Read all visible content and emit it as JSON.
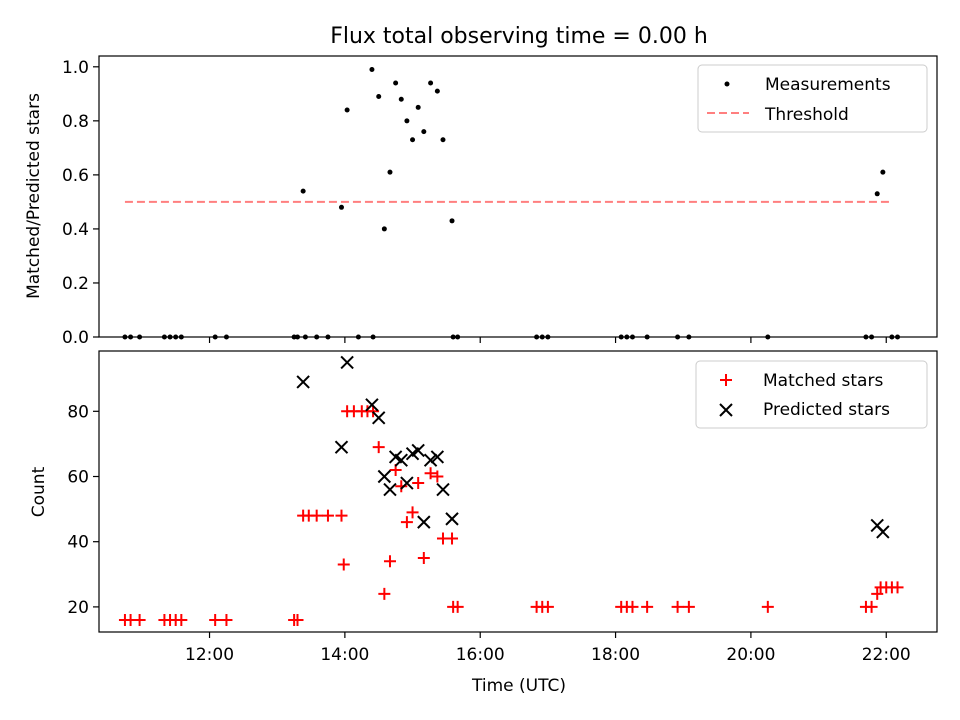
{
  "title": "Flux total observing time = 0.00 h",
  "chart_data": [
    {
      "type": "scatter",
      "ylabel": "Matched/Predicted stars",
      "xlabel": "",
      "xlim": [
        "10:22",
        "22:45"
      ],
      "ylim": [
        0,
        1.04
      ],
      "yticks": [
        0.0,
        0.2,
        0.4,
        0.6,
        0.8,
        1.0
      ],
      "ytick_labels": [
        "0.0",
        "0.2",
        "0.4",
        "0.6",
        "0.8",
        "1.0"
      ],
      "grid": false,
      "legend_position": "top-right",
      "series": [
        {
          "name": "Measurements",
          "marker": "dot",
          "color": "#000000",
          "points": [
            [
              "10:45",
              0
            ],
            [
              "10:50",
              0
            ],
            [
              "10:58",
              0
            ],
            [
              "11:20",
              0
            ],
            [
              "11:25",
              0
            ],
            [
              "11:30",
              0
            ],
            [
              "11:35",
              0
            ],
            [
              "12:05",
              0
            ],
            [
              "12:15",
              0
            ],
            [
              "13:15",
              0
            ],
            [
              "13:18",
              0
            ],
            [
              "13:25",
              0
            ],
            [
              "13:35",
              0
            ],
            [
              "13:45",
              0
            ],
            [
              "13:23",
              0.54
            ],
            [
              "13:57",
              0.48
            ],
            [
              "14:02",
              0.84
            ],
            [
              "14:12",
              0
            ],
            [
              "14:25",
              0
            ],
            [
              "14:24",
              0.99
            ],
            [
              "14:30",
              0.89
            ],
            [
              "14:35",
              0.4
            ],
            [
              "14:40",
              0.61
            ],
            [
              "14:45",
              0.94
            ],
            [
              "14:50",
              0.88
            ],
            [
              "14:55",
              0.8
            ],
            [
              "15:00",
              0.73
            ],
            [
              "15:05",
              0.85
            ],
            [
              "15:10",
              0.76
            ],
            [
              "15:16",
              0.94
            ],
            [
              "15:22",
              0.91
            ],
            [
              "15:27",
              0.73
            ],
            [
              "15:35",
              0.43
            ],
            [
              "15:36",
              0
            ],
            [
              "15:40",
              0
            ],
            [
              "16:50",
              0
            ],
            [
              "16:55",
              0
            ],
            [
              "17:00",
              0
            ],
            [
              "18:05",
              0
            ],
            [
              "18:10",
              0
            ],
            [
              "18:15",
              0
            ],
            [
              "18:28",
              0
            ],
            [
              "18:55",
              0
            ],
            [
              "19:05",
              0
            ],
            [
              "20:15",
              0
            ],
            [
              "21:42",
              0
            ],
            [
              "21:47",
              0
            ],
            [
              "21:52",
              0.53
            ],
            [
              "21:57",
              0.61
            ],
            [
              "22:05",
              0
            ],
            [
              "22:10",
              0
            ]
          ]
        },
        {
          "name": "Threshold",
          "style": "dashed-line",
          "color": "#ff7f7f",
          "points": [
            [
              "10:45",
              0.5
            ],
            [
              "22:05",
              0.5
            ]
          ]
        }
      ]
    },
    {
      "type": "scatter",
      "ylabel": "Count",
      "xlabel": "Time (UTC)",
      "xlim": [
        "10:22",
        "22:45"
      ],
      "ylim": [
        12.3,
        98.5
      ],
      "xticks": [
        "12:00",
        "14:00",
        "16:00",
        "18:00",
        "20:00",
        "22:00"
      ],
      "yticks": [
        20,
        40,
        60,
        80
      ],
      "ytick_labels": [
        "20",
        "40",
        "60",
        "80"
      ],
      "grid": false,
      "legend_position": "top-right",
      "series": [
        {
          "name": "Matched stars",
          "marker": "plus",
          "color": "#ff0000",
          "points": [
            [
              "10:45",
              16
            ],
            [
              "10:50",
              16
            ],
            [
              "10:58",
              16
            ],
            [
              "11:20",
              16
            ],
            [
              "11:25",
              16
            ],
            [
              "11:30",
              16
            ],
            [
              "11:35",
              16
            ],
            [
              "12:05",
              16
            ],
            [
              "12:15",
              16
            ],
            [
              "13:15",
              16
            ],
            [
              "13:18",
              16
            ],
            [
              "13:23",
              48
            ],
            [
              "13:28",
              48
            ],
            [
              "13:35",
              48
            ],
            [
              "13:45",
              48
            ],
            [
              "13:57",
              48
            ],
            [
              "13:59",
              33
            ],
            [
              "14:02",
              80
            ],
            [
              "14:08",
              80
            ],
            [
              "14:15",
              80
            ],
            [
              "14:20",
              80
            ],
            [
              "14:25",
              80
            ],
            [
              "14:30",
              69
            ],
            [
              "14:35",
              24
            ],
            [
              "14:40",
              34
            ],
            [
              "14:45",
              62
            ],
            [
              "14:50",
              57
            ],
            [
              "14:55",
              46
            ],
            [
              "15:00",
              49
            ],
            [
              "15:05",
              58
            ],
            [
              "15:10",
              35
            ],
            [
              "15:16",
              61
            ],
            [
              "15:22",
              60
            ],
            [
              "15:27",
              41
            ],
            [
              "15:35",
              41
            ],
            [
              "15:36",
              20
            ],
            [
              "15:40",
              20
            ],
            [
              "16:50",
              20
            ],
            [
              "16:55",
              20
            ],
            [
              "17:00",
              20
            ],
            [
              "18:05",
              20
            ],
            [
              "18:10",
              20
            ],
            [
              "18:15",
              20
            ],
            [
              "18:28",
              20
            ],
            [
              "18:55",
              20
            ],
            [
              "19:05",
              20
            ],
            [
              "20:15",
              20
            ],
            [
              "21:42",
              20
            ],
            [
              "21:47",
              20
            ],
            [
              "21:52",
              24
            ],
            [
              "21:55",
              26
            ],
            [
              "22:00",
              26
            ],
            [
              "22:05",
              26
            ],
            [
              "22:10",
              26
            ]
          ]
        },
        {
          "name": "Predicted stars",
          "marker": "x",
          "color": "#000000",
          "points": [
            [
              "13:23",
              89
            ],
            [
              "13:57",
              69
            ],
            [
              "14:02",
              95
            ],
            [
              "14:24",
              82
            ],
            [
              "14:30",
              78
            ],
            [
              "14:35",
              60
            ],
            [
              "14:40",
              56
            ],
            [
              "14:45",
              66
            ],
            [
              "14:50",
              65
            ],
            [
              "14:55",
              58
            ],
            [
              "15:00",
              67
            ],
            [
              "15:05",
              68
            ],
            [
              "15:10",
              46
            ],
            [
              "15:16",
              65
            ],
            [
              "15:22",
              66
            ],
            [
              "15:27",
              56
            ],
            [
              "15:35",
              47
            ],
            [
              "21:52",
              45
            ],
            [
              "21:57",
              43
            ]
          ]
        }
      ]
    }
  ]
}
